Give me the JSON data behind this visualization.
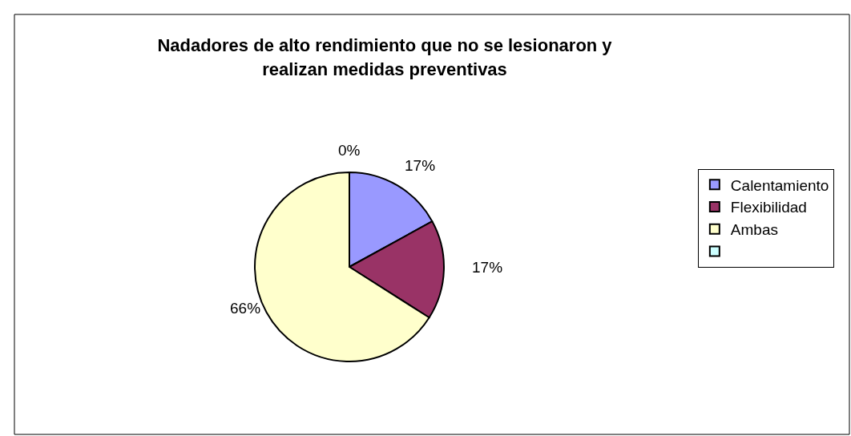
{
  "chart_data": {
    "type": "pie",
    "title": "Nadadores de alto rendimiento que no se lesionaron y realizan medidas preventivas",
    "categories": [
      "Calentamiento",
      "Flexibilidad",
      "Ambas",
      null
    ],
    "values": [
      17,
      17,
      66,
      0
    ],
    "value_labels": [
      "17%",
      "17%",
      "66%",
      "0%"
    ],
    "colors": [
      "#9999ff",
      "#993366",
      "#ffffcc",
      "#ccffff"
    ],
    "legend": "right"
  }
}
